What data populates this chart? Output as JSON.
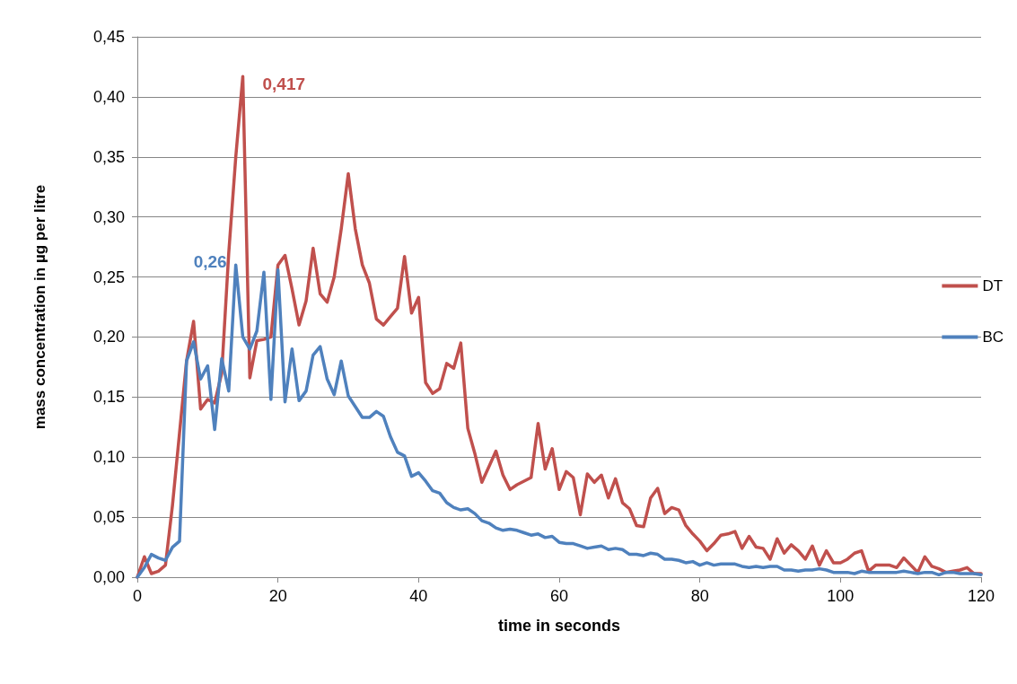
{
  "chart_data": {
    "type": "line",
    "xlabel": "time in seconds",
    "ylabel": "mass concentration in µg per litre",
    "x": [
      0,
      1,
      2,
      3,
      4,
      5,
      6,
      7,
      8,
      9,
      10,
      11,
      12,
      13,
      14,
      15,
      16,
      17,
      18,
      19,
      20,
      21,
      22,
      23,
      24,
      25,
      26,
      27,
      28,
      29,
      30,
      31,
      32,
      33,
      34,
      35,
      36,
      37,
      38,
      39,
      40,
      41,
      42,
      43,
      44,
      45,
      46,
      47,
      48,
      49,
      50,
      51,
      52,
      53,
      54,
      55,
      56,
      57,
      58,
      59,
      60,
      61,
      62,
      63,
      64,
      65,
      66,
      67,
      68,
      69,
      70,
      71,
      72,
      73,
      74,
      75,
      76,
      77,
      78,
      79,
      80,
      81,
      82,
      83,
      84,
      85,
      86,
      87,
      88,
      89,
      90,
      91,
      92,
      93,
      94,
      95,
      96,
      97,
      98,
      99,
      100,
      101,
      102,
      103,
      104,
      105,
      106,
      107,
      108,
      109,
      110,
      111,
      112,
      113,
      114,
      115,
      116,
      117,
      118,
      119,
      120
    ],
    "series": [
      {
        "name": "DT",
        "color": "#c0504d",
        "values": [
          0,
          0.017,
          0.003,
          0.005,
          0.01,
          0.06,
          0.12,
          0.18,
          0.213,
          0.14,
          0.148,
          0.145,
          0.17,
          0.27,
          0.35,
          0.417,
          0.166,
          0.197,
          0.198,
          0.2,
          0.26,
          0.268,
          0.24,
          0.21,
          0.23,
          0.274,
          0.236,
          0.229,
          0.25,
          0.29,
          0.336,
          0.29,
          0.26,
          0.245,
          0.215,
          0.21,
          0.217,
          0.224,
          0.267,
          0.22,
          0.233,
          0.162,
          0.153,
          0.157,
          0.178,
          0.174,
          0.195,
          0.124,
          0.103,
          0.079,
          0.092,
          0.105,
          0.085,
          0.073,
          0.077,
          0.08,
          0.083,
          0.128,
          0.09,
          0.107,
          0.073,
          0.088,
          0.083,
          0.052,
          0.086,
          0.079,
          0.085,
          0.066,
          0.082,
          0.062,
          0.057,
          0.043,
          0.042,
          0.066,
          0.074,
          0.053,
          0.058,
          0.056,
          0.043,
          0.036,
          0.03,
          0.022,
          0.028,
          0.035,
          0.036,
          0.038,
          0.024,
          0.034,
          0.025,
          0.024,
          0.015,
          0.032,
          0.02,
          0.027,
          0.022,
          0.015,
          0.026,
          0.01,
          0.022,
          0.012,
          0.012,
          0.015,
          0.02,
          0.022,
          0.005,
          0.01,
          0.01,
          0.01,
          0.008,
          0.016,
          0.01,
          0.004,
          0.017,
          0.009,
          0.007,
          0.004,
          0.005,
          0.006,
          0.008,
          0.003,
          0.003
        ]
      },
      {
        "name": "BC",
        "color": "#4f81bd",
        "values": [
          0,
          0.008,
          0.019,
          0.016,
          0.014,
          0.025,
          0.03,
          0.18,
          0.196,
          0.165,
          0.176,
          0.123,
          0.182,
          0.155,
          0.26,
          0.2,
          0.19,
          0.205,
          0.254,
          0.148,
          0.256,
          0.146,
          0.19,
          0.147,
          0.155,
          0.185,
          0.192,
          0.165,
          0.152,
          0.18,
          0.151,
          0.142,
          0.133,
          0.133,
          0.138,
          0.134,
          0.117,
          0.104,
          0.101,
          0.084,
          0.087,
          0.08,
          0.072,
          0.07,
          0.062,
          0.058,
          0.056,
          0.057,
          0.053,
          0.047,
          0.045,
          0.041,
          0.039,
          0.04,
          0.039,
          0.037,
          0.035,
          0.036,
          0.033,
          0.034,
          0.029,
          0.028,
          0.028,
          0.026,
          0.024,
          0.025,
          0.026,
          0.023,
          0.024,
          0.023,
          0.019,
          0.019,
          0.018,
          0.02,
          0.019,
          0.015,
          0.015,
          0.014,
          0.012,
          0.013,
          0.01,
          0.012,
          0.01,
          0.011,
          0.011,
          0.011,
          0.009,
          0.008,
          0.009,
          0.008,
          0.009,
          0.009,
          0.006,
          0.006,
          0.005,
          0.006,
          0.006,
          0.007,
          0.006,
          0.004,
          0.004,
          0.004,
          0.003,
          0.005,
          0.004,
          0.004,
          0.004,
          0.004,
          0.004,
          0.005,
          0.004,
          0.003,
          0.004,
          0.004,
          0.002,
          0.004,
          0.004,
          0.003,
          0.003,
          0.003,
          0.002
        ]
      }
    ],
    "annotations": [
      {
        "text": "0,417",
        "x": 15,
        "y": 0.417
      },
      {
        "text": "0,26",
        "x": 14,
        "y": 0.26
      }
    ],
    "xlim": [
      0,
      120
    ],
    "xticks": [
      0,
      20,
      40,
      60,
      80,
      100,
      120
    ],
    "ylim": [
      0,
      0.45
    ],
    "yticks": [
      {
        "value": 0,
        "label": "0,00"
      },
      {
        "value": 0.05,
        "label": "0,05"
      },
      {
        "value": 0.1,
        "label": "0,10"
      },
      {
        "value": 0.15,
        "label": "0,15"
      },
      {
        "value": 0.2,
        "label": "0,20"
      },
      {
        "value": 0.25,
        "label": "0,25"
      },
      {
        "value": 0.3,
        "label": "0,30"
      },
      {
        "value": 0.35,
        "label": "0,35"
      },
      {
        "value": 0.4,
        "label": "0,40"
      },
      {
        "value": 0.45,
        "label": "0,45"
      }
    ],
    "grid": "y",
    "legend": "right",
    "marker": "none",
    "line_style": "solid"
  }
}
